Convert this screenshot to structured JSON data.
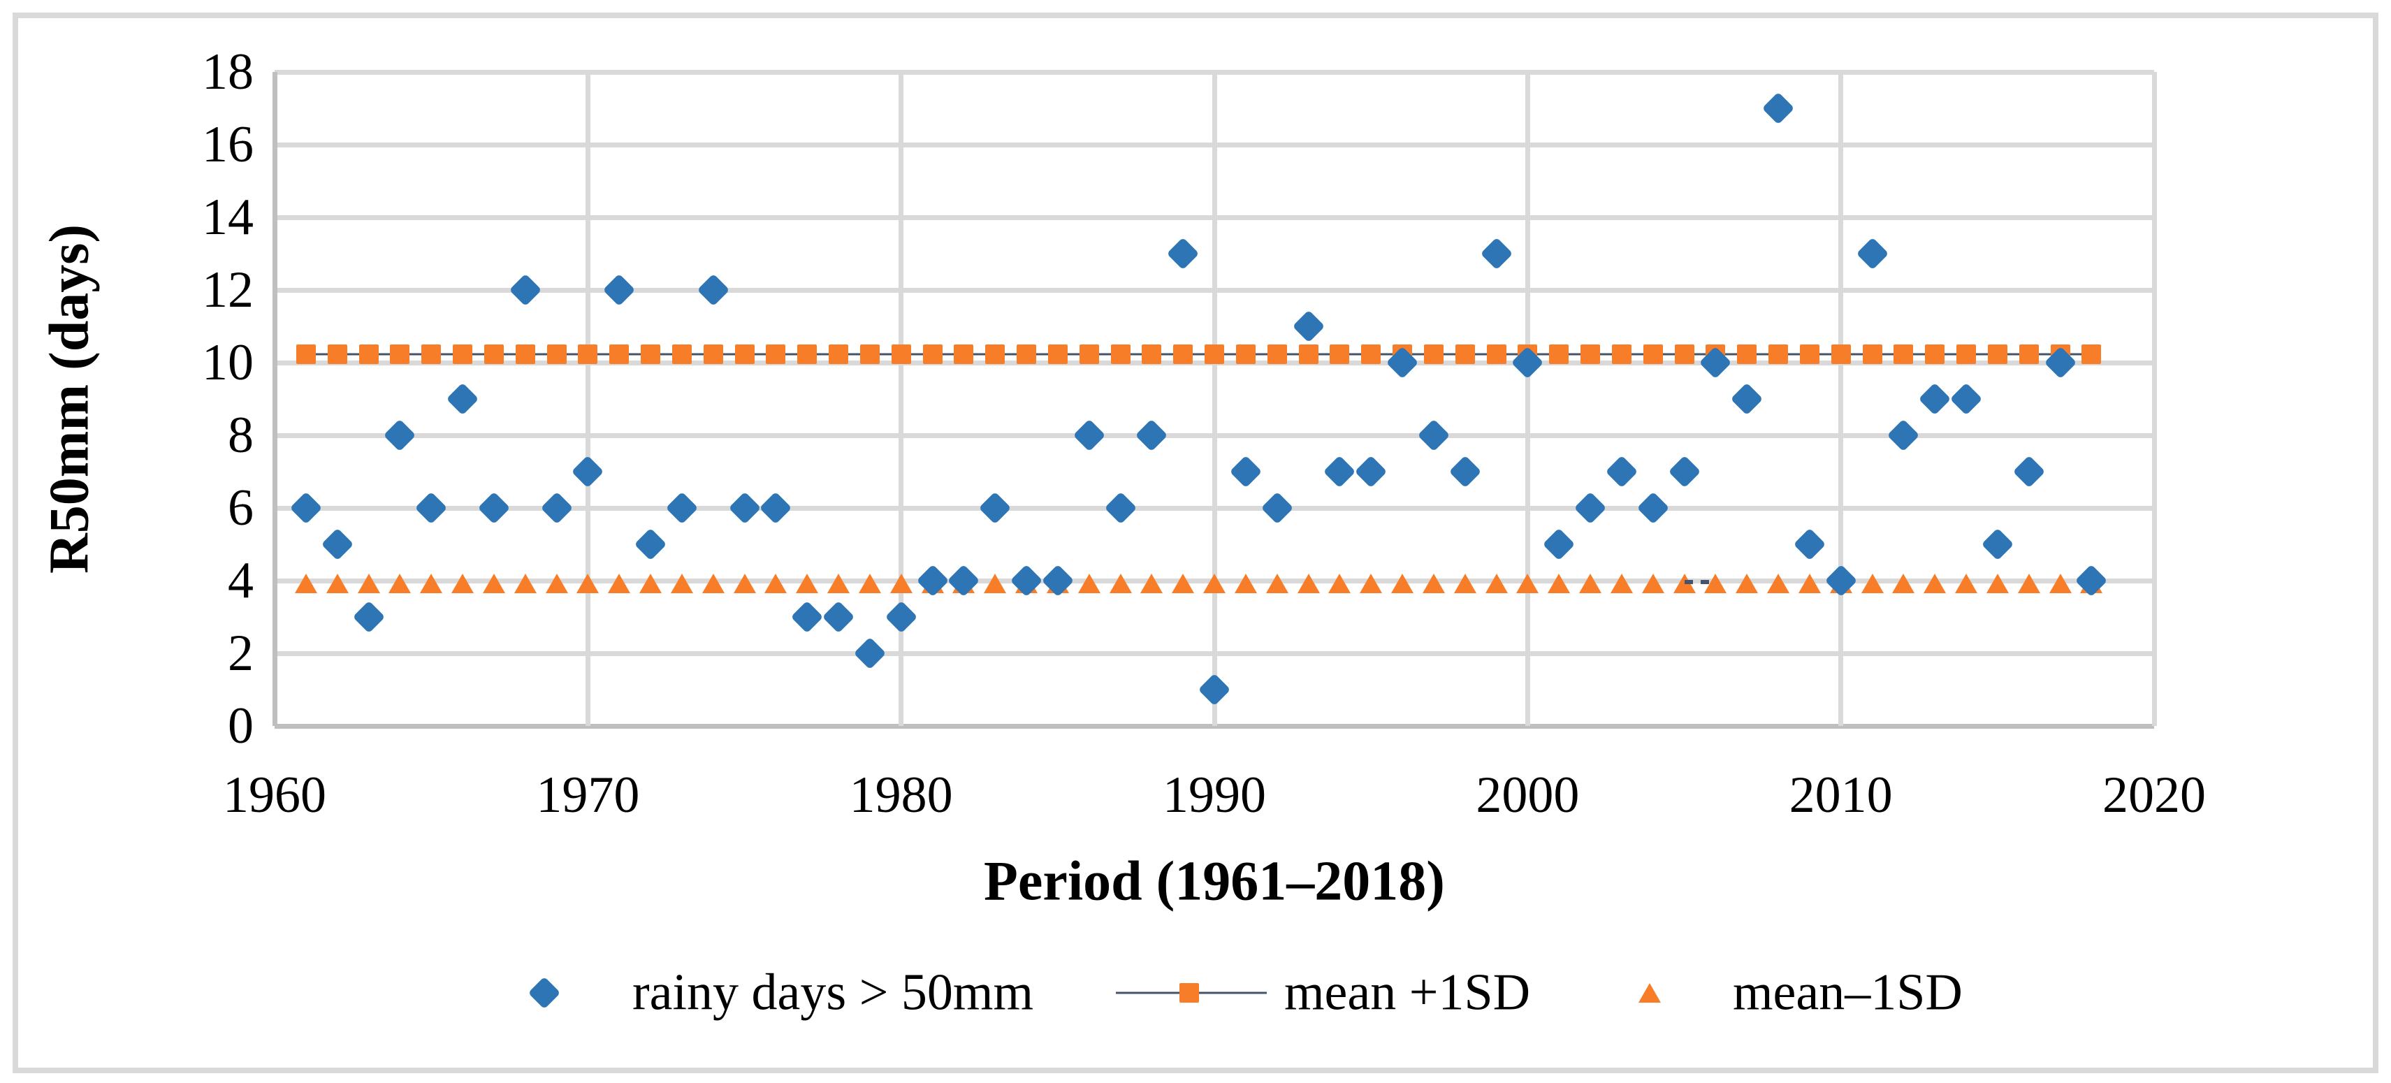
{
  "figure": {
    "background_color": "#ffffff",
    "frame_color": "#d9d9d9",
    "gridline_color": "#d9d9d9",
    "axisline_color": "#bfbfbf",
    "text_color": "#000000"
  },
  "chart_data": {
    "type": "scatter",
    "title": "",
    "xlabel": "Period (1961–2018)",
    "ylabel": "R50mm (days)",
    "xlim": [
      1960,
      2020
    ],
    "ylim": [
      0,
      18
    ],
    "x_ticks": [
      1960,
      1970,
      1980,
      1990,
      2000,
      2010,
      2020
    ],
    "y_ticks": [
      0,
      2,
      4,
      6,
      8,
      10,
      12,
      14,
      16,
      18
    ],
    "grid": true,
    "legend_position": "bottom",
    "categories": [
      1961,
      1962,
      1963,
      1964,
      1965,
      1966,
      1967,
      1968,
      1969,
      1970,
      1971,
      1972,
      1973,
      1974,
      1975,
      1976,
      1977,
      1978,
      1979,
      1980,
      1981,
      1982,
      1983,
      1984,
      1985,
      1986,
      1987,
      1988,
      1989,
      1990,
      1991,
      1992,
      1993,
      1994,
      1995,
      1996,
      1997,
      1998,
      1999,
      2000,
      2001,
      2002,
      2003,
      2004,
      2005,
      2006,
      2007,
      2008,
      2009,
      2010,
      2011,
      2012,
      2013,
      2014,
      2015,
      2016,
      2017,
      2018
    ],
    "series": [
      {
        "name": "rainy days > 50mm",
        "marker": "diamond",
        "color": "#2e75b6",
        "values": [
          6,
          5,
          3,
          8,
          6,
          9,
          6,
          12,
          6,
          7,
          12,
          5,
          6,
          12,
          6,
          6,
          3,
          3,
          2,
          3,
          4,
          4,
          6,
          4,
          4,
          8,
          6,
          8,
          13,
          1,
          7,
          6,
          11,
          7,
          7,
          10,
          8,
          7,
          13,
          10,
          5,
          6,
          7,
          6,
          7,
          10,
          9,
          17,
          5,
          4,
          13,
          8,
          9,
          9,
          5,
          7,
          10,
          4
        ]
      },
      {
        "name": "mean +1SD",
        "marker": "square",
        "color": "#f87d28",
        "line_color": "#44546a",
        "constant_value": 10.23
      },
      {
        "name": "mean–1SD",
        "marker": "triangle",
        "color": "#f87d28",
        "constant_value": 3.93
      }
    ],
    "stray_dash_artifact": {
      "year_start": 2005.0,
      "year_end": 2005.8,
      "value": 4.0
    }
  }
}
